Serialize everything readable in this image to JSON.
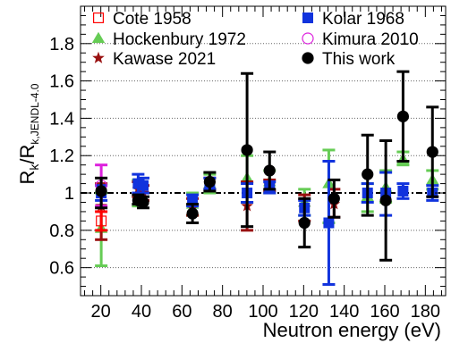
{
  "chart_data": {
    "type": "scatter",
    "xlabel": "Neutron energy (eV)",
    "ylabel_main": "R",
    "ylabel_main_sub": "k",
    "ylabel_sep": "/R",
    "ylabel_ref_sub": "k,JENDL-4.0",
    "xlim": [
      10,
      190
    ],
    "ylim": [
      0.45,
      2.0
    ],
    "x_ticks": [
      20,
      40,
      60,
      80,
      100,
      120,
      140,
      160,
      180
    ],
    "y_ticks": [
      0.6,
      0.8,
      1,
      1.2,
      1.4,
      1.6,
      1.8
    ],
    "grid": "horizontal dotted",
    "reference_line": 1.0,
    "legend_position": "top",
    "series": [
      {
        "name": "Cote 1958",
        "marker": "open-square",
        "color": "#ff0000",
        "points": [
          {
            "x": 20.2,
            "y": 0.85,
            "lo": 0.8,
            "hi": 0.9
          }
        ]
      },
      {
        "name": "Hockenbury 1972",
        "marker": "triangle",
        "color": "#66cc55",
        "points": [
          {
            "x": 20.2,
            "y": 0.81,
            "lo": 0.61,
            "hi": 1.0
          },
          {
            "x": 38.4,
            "y": 1.0,
            "lo": 0.93,
            "hi": 1.07
          },
          {
            "x": 65.2,
            "y": 0.94,
            "lo": 0.88,
            "hi": 1.0
          },
          {
            "x": 73.7,
            "y": 1.05,
            "lo": 1.0,
            "hi": 1.1
          },
          {
            "x": 92.1,
            "y": 1.08,
            "lo": 0.95,
            "hi": 1.2
          },
          {
            "x": 103.2,
            "y": 1.06,
            "lo": 1.0,
            "hi": 1.12
          },
          {
            "x": 120.4,
            "y": 0.95,
            "lo": 0.88,
            "hi": 1.02
          },
          {
            "x": 132.4,
            "y": 1.05,
            "lo": 0.84,
            "hi": 1.23
          },
          {
            "x": 151.5,
            "y": 0.98,
            "lo": 0.9,
            "hi": 1.05
          },
          {
            "x": 160.5,
            "y": 1.03,
            "lo": 0.95,
            "hi": 1.12
          },
          {
            "x": 169.0,
            "y": 1.18,
            "lo": 1.15,
            "hi": 1.22
          },
          {
            "x": 183.5,
            "y": 1.07,
            "lo": 1.02,
            "hi": 1.12
          }
        ]
      },
      {
        "name": "Kawase 2021",
        "marker": "star",
        "color": "#991111",
        "points": [
          {
            "x": 20.2,
            "y": 0.93,
            "lo": 0.75,
            "hi": 1.05
          },
          {
            "x": 38.4,
            "y": 1.02,
            "lo": 0.98,
            "hi": 1.06
          },
          {
            "x": 40.9,
            "y": 1.0,
            "lo": 0.96,
            "hi": 1.04
          },
          {
            "x": 65.2,
            "y": 0.92,
            "lo": 0.88,
            "hi": 0.97
          },
          {
            "x": 73.7,
            "y": 1.05,
            "lo": 1.02,
            "hi": 1.08
          },
          {
            "x": 92.1,
            "y": 0.93,
            "lo": 0.8,
            "hi": 1.06
          },
          {
            "x": 103.2,
            "y": 1.04,
            "lo": 1.01,
            "hi": 1.07
          },
          {
            "x": 120.4,
            "y": 0.92,
            "lo": 0.85,
            "hi": 0.99
          },
          {
            "x": 135.0,
            "y": 0.94,
            "lo": 0.87,
            "hi": 1.02
          }
        ]
      },
      {
        "name": "Kolar 1968",
        "marker": "square",
        "color": "#1133dd",
        "points": [
          {
            "x": 20.2,
            "y": 1.0,
            "lo": 0.96,
            "hi": 1.04
          },
          {
            "x": 38.4,
            "y": 1.05,
            "lo": 1.0,
            "hi": 1.1
          },
          {
            "x": 40.9,
            "y": 1.04,
            "lo": 1.0,
            "hi": 1.08
          },
          {
            "x": 65.2,
            "y": 0.96,
            "lo": 0.93,
            "hi": 0.99
          },
          {
            "x": 73.7,
            "y": 1.05,
            "lo": 1.02,
            "hi": 1.08
          },
          {
            "x": 92.1,
            "y": 1.0,
            "lo": 0.95,
            "hi": 1.05
          },
          {
            "x": 103.2,
            "y": 1.03,
            "lo": 1.0,
            "hi": 1.06
          },
          {
            "x": 120.4,
            "y": 0.92,
            "lo": 0.88,
            "hi": 0.96
          },
          {
            "x": 132.4,
            "y": 0.84,
            "lo": 0.51,
            "hi": 1.17
          },
          {
            "x": 151.5,
            "y": 1.0,
            "lo": 0.95,
            "hi": 1.05
          },
          {
            "x": 160.5,
            "y": 1.0,
            "lo": 0.88,
            "hi": 1.11
          },
          {
            "x": 169.0,
            "y": 1.01,
            "lo": 0.97,
            "hi": 1.05
          },
          {
            "x": 183.5,
            "y": 1.0,
            "lo": 0.96,
            "hi": 1.04
          }
        ]
      },
      {
        "name": "Kimura 2010",
        "marker": "open-circle",
        "color": "#dd22dd",
        "points": [
          {
            "x": 20.2,
            "y": 1.04,
            "lo": 0.93,
            "hi": 1.15
          }
        ]
      },
      {
        "name": "This work",
        "marker": "circle",
        "color": "#000000",
        "points": [
          {
            "x": 20.2,
            "y": 1.01,
            "lo": 0.92,
            "hi": 1.08
          },
          {
            "x": 38.4,
            "y": 0.96,
            "lo": 0.94,
            "hi": 0.99
          },
          {
            "x": 40.9,
            "y": 0.95,
            "lo": 0.92,
            "hi": 0.98
          },
          {
            "x": 65.2,
            "y": 0.89,
            "lo": 0.84,
            "hi": 0.94
          },
          {
            "x": 73.7,
            "y": 1.06,
            "lo": 1.01,
            "hi": 1.11
          },
          {
            "x": 92.1,
            "y": 1.23,
            "lo": 0.82,
            "hi": 1.64
          },
          {
            "x": 103.2,
            "y": 1.12,
            "lo": 1.02,
            "hi": 1.22
          },
          {
            "x": 120.4,
            "y": 0.84,
            "lo": 0.71,
            "hi": 0.97
          },
          {
            "x": 135.0,
            "y": 0.97,
            "lo": 0.87,
            "hi": 1.07
          },
          {
            "x": 151.5,
            "y": 1.1,
            "lo": 0.88,
            "hi": 1.31
          },
          {
            "x": 160.5,
            "y": 0.96,
            "lo": 0.64,
            "hi": 1.28
          },
          {
            "x": 169.0,
            "y": 1.41,
            "lo": 1.17,
            "hi": 1.65
          },
          {
            "x": 183.5,
            "y": 1.22,
            "lo": 0.98,
            "hi": 1.46
          }
        ]
      }
    ]
  }
}
